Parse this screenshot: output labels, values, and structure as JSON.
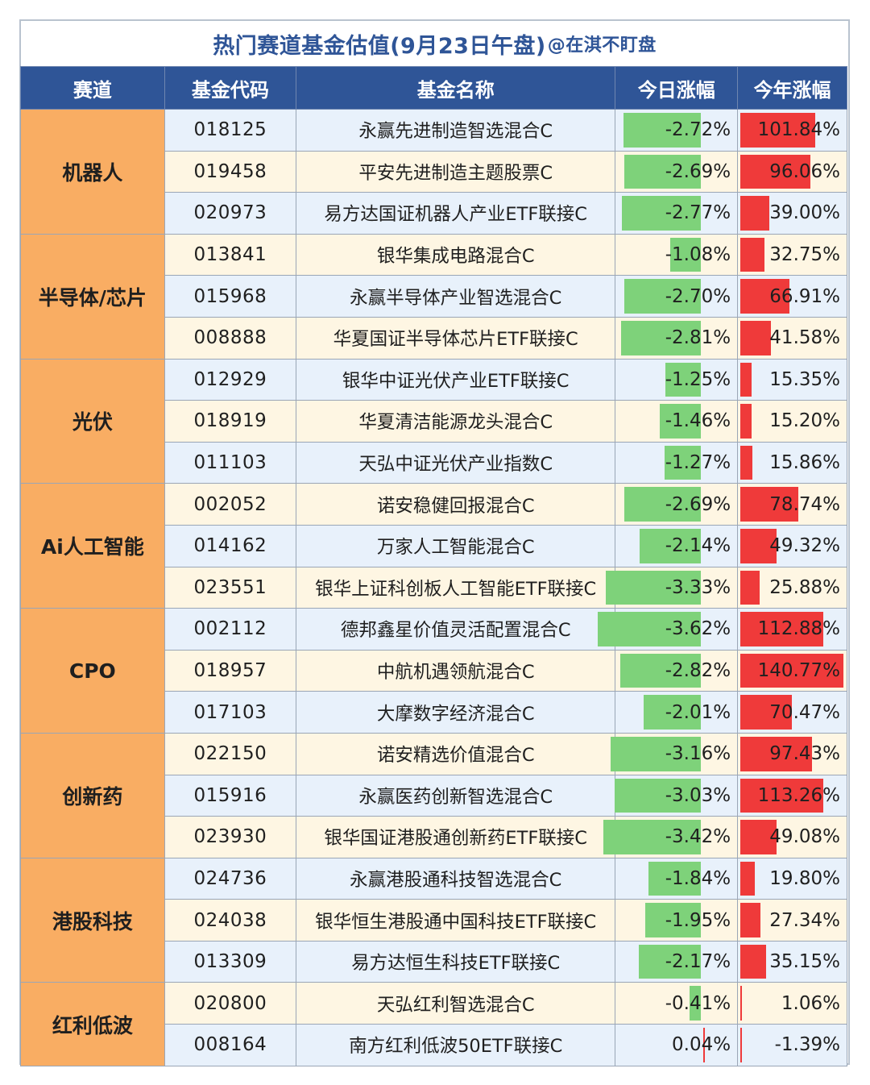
{
  "title": {
    "main": "热门赛道基金估值(9月23日午盘)",
    "tail": "@在淇不盯盘"
  },
  "columns": [
    "赛道",
    "基金代码",
    "基金名称",
    "今日涨幅",
    "今年涨幅"
  ],
  "colors": {
    "header_bg": "#2f5597",
    "track_bg": "#f9ad63",
    "row_blue": "#e8f1fb",
    "row_cream": "#fef6e3",
    "bar_green": "#7ed27a",
    "bar_red": "#ef3a3a"
  },
  "groups": [
    {
      "track": "机器人",
      "funds": [
        {
          "code": "018125",
          "name": "永赢先进制造智选混合C",
          "today": "-2.72%",
          "today_value": -2.72,
          "ytd": "101.84%",
          "ytd_value": 101.84
        },
        {
          "code": "019458",
          "name": "平安先进制造主题股票C",
          "today": "-2.69%",
          "today_value": -2.69,
          "ytd": "96.06%",
          "ytd_value": 96.06
        },
        {
          "code": "020973",
          "name": "易方达国证机器人产业ETF联接C",
          "today": "-2.77%",
          "today_value": -2.77,
          "ytd": "39.00%",
          "ytd_value": 39.0
        }
      ]
    },
    {
      "track": "半导体/芯片",
      "funds": [
        {
          "code": "013841",
          "name": "银华集成电路混合C",
          "today": "-1.08%",
          "today_value": -1.08,
          "ytd": "32.75%",
          "ytd_value": 32.75
        },
        {
          "code": "015968",
          "name": "永赢半导体产业智选混合C",
          "today": "-2.70%",
          "today_value": -2.7,
          "ytd": "66.91%",
          "ytd_value": 66.91
        },
        {
          "code": "008888",
          "name": "华夏国证半导体芯片ETF联接C",
          "today": "-2.81%",
          "today_value": -2.81,
          "ytd": "41.58%",
          "ytd_value": 41.58
        }
      ]
    },
    {
      "track": "光伏",
      "funds": [
        {
          "code": "012929",
          "name": "银华中证光伏产业ETF联接C",
          "today": "-1.25%",
          "today_value": -1.25,
          "ytd": "15.35%",
          "ytd_value": 15.35
        },
        {
          "code": "018919",
          "name": "华夏清洁能源龙头混合C",
          "today": "-1.46%",
          "today_value": -1.46,
          "ytd": "15.20%",
          "ytd_value": 15.2
        },
        {
          "code": "011103",
          "name": "天弘中证光伏产业指数C",
          "today": "-1.27%",
          "today_value": -1.27,
          "ytd": "15.86%",
          "ytd_value": 15.86
        }
      ]
    },
    {
      "track": "Ai人工智能",
      "funds": [
        {
          "code": "002052",
          "name": "诺安稳健回报混合C",
          "today": "-2.69%",
          "today_value": -2.69,
          "ytd": "78.74%",
          "ytd_value": 78.74
        },
        {
          "code": "014162",
          "name": "万家人工智能混合C",
          "today": "-2.14%",
          "today_value": -2.14,
          "ytd": "49.32%",
          "ytd_value": 49.32
        },
        {
          "code": "023551",
          "name": "银华上证科创板人工智能ETF联接C",
          "today": "-3.33%",
          "today_value": -3.33,
          "ytd": "25.88%",
          "ytd_value": 25.88
        }
      ]
    },
    {
      "track": "CPO",
      "funds": [
        {
          "code": "002112",
          "name": "德邦鑫星价值灵活配置混合C",
          "today": "-3.62%",
          "today_value": -3.62,
          "ytd": "112.88%",
          "ytd_value": 112.88
        },
        {
          "code": "018957",
          "name": "中航机遇领航混合C",
          "today": "-2.82%",
          "today_value": -2.82,
          "ytd": "140.77%",
          "ytd_value": 140.77
        },
        {
          "code": "017103",
          "name": "大摩数字经济混合C",
          "today": "-2.01%",
          "today_value": -2.01,
          "ytd": "70.47%",
          "ytd_value": 70.47
        }
      ]
    },
    {
      "track": "创新药",
      "funds": [
        {
          "code": "022150",
          "name": "诺安精选价值混合C",
          "today": "-3.16%",
          "today_value": -3.16,
          "ytd": "97.43%",
          "ytd_value": 97.43
        },
        {
          "code": "015916",
          "name": "永赢医药创新智选混合C",
          "today": "-3.03%",
          "today_value": -3.03,
          "ytd": "113.26%",
          "ytd_value": 113.26
        },
        {
          "code": "023930",
          "name": "银华国证港股通创新药ETF联接C",
          "today": "-3.42%",
          "today_value": -3.42,
          "ytd": "49.08%",
          "ytd_value": 49.08
        }
      ]
    },
    {
      "track": "港股科技",
      "funds": [
        {
          "code": "024736",
          "name": "永赢港股通科技智选混合C",
          "today": "-1.84%",
          "today_value": -1.84,
          "ytd": "19.80%",
          "ytd_value": 19.8
        },
        {
          "code": "024038",
          "name": "银华恒生港股通中国科技ETF联接C",
          "today": "-1.95%",
          "today_value": -1.95,
          "ytd": "27.34%",
          "ytd_value": 27.34
        },
        {
          "code": "013309",
          "name": "易方达恒生科技ETF联接C",
          "today": "-2.17%",
          "today_value": -2.17,
          "ytd": "35.15%",
          "ytd_value": 35.15
        }
      ]
    },
    {
      "track": "红利低波",
      "funds": [
        {
          "code": "020800",
          "name": "天弘红利智选混合C",
          "today": "-0.41%",
          "today_value": -0.41,
          "ytd": "1.06%",
          "ytd_value": 1.06
        },
        {
          "code": "008164",
          "name": "南方红利低波50ETF联接C",
          "today": "0.04%",
          "today_value": 0.04,
          "ytd": "-1.39%",
          "ytd_value": -1.39
        }
      ]
    }
  ]
}
